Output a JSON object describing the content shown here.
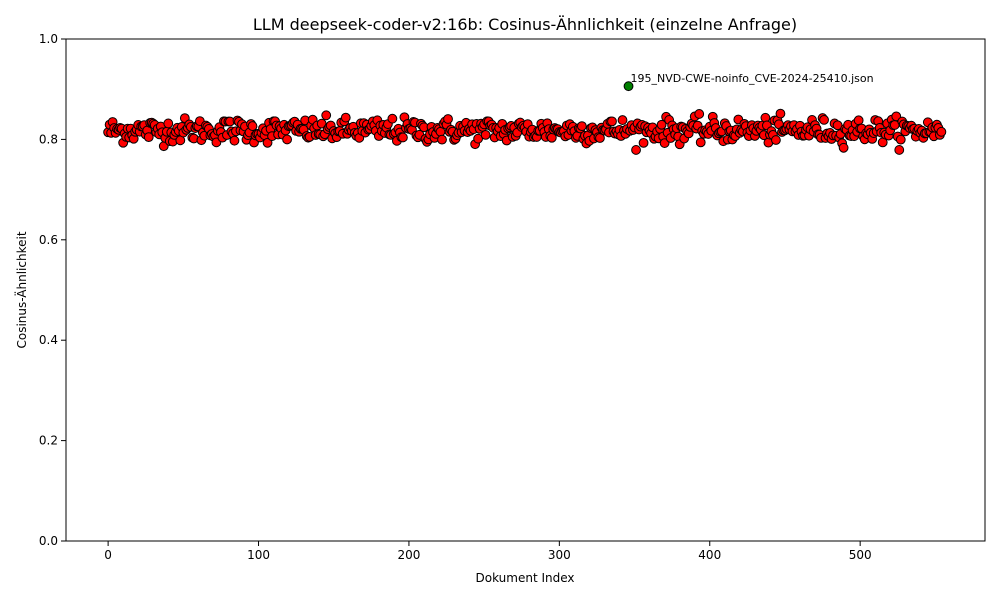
{
  "chart_data": {
    "type": "scatter",
    "title": "LLM deepseek-coder-v2:16b: Cosinus-Ähnlichkeit (einzelne Anfrage)",
    "xlabel": "Dokument Index",
    "ylabel": "Cosinus-Ähnlichkeit",
    "xlim": [
      -28,
      583
    ],
    "ylim": [
      0.0,
      1.0
    ],
    "xticks": [
      0,
      100,
      200,
      300,
      400,
      500
    ],
    "yticks": [
      0.0,
      0.2,
      0.4,
      0.6,
      0.8,
      1.0
    ],
    "ytick_labels": [
      "0.0",
      "0.2",
      "0.4",
      "0.6",
      "0.8",
      "1.0"
    ],
    "grid": false,
    "point_color": "#ff0000",
    "highlight_color": "#008000",
    "edge_color": "#000000",
    "n_points": 555,
    "y_mean": 0.818,
    "y_spread": 0.02,
    "y_min": 0.779,
    "y_max": 0.862,
    "highlight": {
      "x": 346,
      "y": 0.906,
      "label": "195_NVD-CWE-noinfo_CVE-2024-25410.json"
    }
  }
}
